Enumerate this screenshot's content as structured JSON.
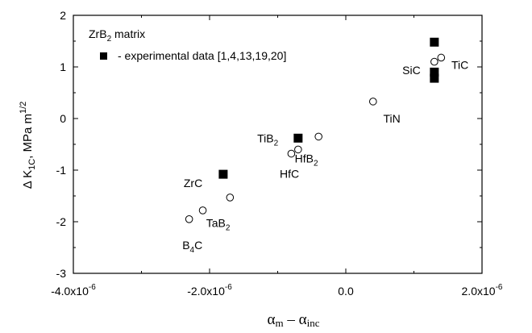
{
  "chart_data": {
    "type": "scatter",
    "xlabel": {
      "base": "α",
      "sub1": "m",
      "mid": " – ",
      "base2": "α",
      "sub2": "inc"
    },
    "ylabel": {
      "pre": "Δ K",
      "sub": "1C",
      "post": ", MPa m",
      "sup": "1/2"
    },
    "xlim": [
      -4e-06,
      2e-06
    ],
    "ylim": [
      -3,
      2
    ],
    "x_ticks": [
      {
        "value": -4e-06,
        "mantissa": "-4.0x10",
        "exp": "-6"
      },
      {
        "value": -2e-06,
        "mantissa": "-2.0x10",
        "exp": "-6"
      },
      {
        "value": 0.0,
        "mantissa": "0.0",
        "exp": ""
      },
      {
        "value": 2e-06,
        "mantissa": "2.0x10",
        "exp": "-6"
      }
    ],
    "y_ticks": [
      {
        "value": 2,
        "label": "2"
      },
      {
        "value": 1,
        "label": "1"
      },
      {
        "value": 0,
        "label": "0"
      },
      {
        "value": -1,
        "label": "-1"
      },
      {
        "value": -2,
        "label": "-2"
      },
      {
        "value": -3,
        "label": "-3"
      }
    ],
    "grid": false,
    "legend": {
      "title_base": "ZrB",
      "title_sub": "2",
      "title_rest": " matrix",
      "entry_text": "- experimental data [1,4,13,19,20]",
      "placement": "top-left"
    },
    "series": [
      {
        "marker": "open-circle",
        "x": [
          -2.3e-06,
          -2.1e-06,
          -1.7e-06,
          -8e-07,
          -7e-07,
          -4e-07,
          4e-07,
          1.3e-06,
          1.4e-06
        ],
        "y": [
          -1.95,
          -1.78,
          -1.53,
          -0.68,
          -0.6,
          -0.35,
          0.33,
          1.1,
          1.18
        ]
      },
      {
        "name": "- experimental data [1,4,13,19,20]",
        "marker": "filled-square",
        "x": [
          -1.8e-06,
          -7e-07,
          1.3e-06,
          1.3e-06,
          1.3e-06
        ],
        "y": [
          -1.08,
          -0.38,
          1.48,
          0.9,
          0.78
        ]
      }
    ],
    "annotations": [
      {
        "id": "zrc",
        "base": "ZrC",
        "sub": "",
        "x": -2.38e-06,
        "y": -1.25
      },
      {
        "id": "tab2",
        "base": "TaB",
        "sub": "2",
        "x": -2.05e-06,
        "y": -2.02
      },
      {
        "id": "b4c",
        "base": "B",
        "sub": "4",
        "post": "C",
        "x": -2.4e-06,
        "y": -2.45
      },
      {
        "id": "tib2",
        "base": "TiB",
        "sub": "2",
        "x": -1.3e-06,
        "y": -0.38
      },
      {
        "id": "hfc",
        "base": "HfC",
        "sub": "",
        "x": -9.7e-07,
        "y": -1.07
      },
      {
        "id": "hfb2",
        "base": "HfB",
        "sub": "2",
        "x": -7.5e-07,
        "y": -0.77
      },
      {
        "id": "tin",
        "base": "TiN",
        "sub": "",
        "x": 5.5e-07,
        "y": 0.0
      },
      {
        "id": "sic",
        "base": "SiC",
        "sub": "",
        "x": 8.3e-07,
        "y": 0.94
      },
      {
        "id": "tic",
        "base": "TiC",
        "sub": "",
        "x": 1.55e-06,
        "y": 1.04
      }
    ]
  }
}
